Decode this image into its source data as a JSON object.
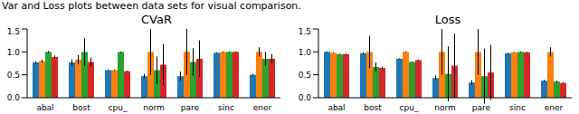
{
  "caption": "Var and Loss plots between data sets for visual comparison.",
  "chart_data": [
    {
      "type": "bar",
      "title": "CVaR",
      "categories": [
        "abal",
        "bost",
        "cpu_",
        "norm",
        "pare",
        "sinc",
        "ener"
      ],
      "series": [
        {
          "color": "#1f77b4",
          "values": [
            0.77,
            0.77,
            0.6,
            0.47,
            0.47,
            0.98,
            0.5
          ],
          "errors": [
            0.02,
            0.07,
            0.01,
            0.05,
            0.1,
            0.01,
            0.02
          ]
        },
        {
          "color": "#ff7f0e",
          "values": [
            0.8,
            0.83,
            0.6,
            1.0,
            1.0,
            1.0,
            1.0
          ],
          "errors": [
            0.03,
            0.1,
            0.01,
            0.5,
            0.5,
            0.01,
            0.1
          ]
        },
        {
          "color": "#2ca02c",
          "values": [
            1.0,
            1.0,
            1.0,
            0.6,
            0.78,
            1.0,
            0.85
          ],
          "errors": [
            0.02,
            0.3,
            0.01,
            0.3,
            0.3,
            0.01,
            0.15
          ]
        },
        {
          "color": "#d62728",
          "values": [
            0.89,
            0.78,
            0.58,
            0.72,
            0.85,
            1.0,
            0.85
          ],
          "errors": [
            0.03,
            0.1,
            0.01,
            0.45,
            0.4,
            0.01,
            0.1
          ]
        }
      ],
      "ylim": [
        0,
        1.5
      ],
      "yticks": [
        {
          "value": 0,
          "label": "0.0"
        },
        {
          "value": 0.5,
          "label": "0.5"
        },
        {
          "value": 1,
          "label": "1.0"
        },
        {
          "value": 1.5,
          "label": "1.5"
        }
      ],
      "grid": false
    },
    {
      "type": "bar",
      "title": "Loss",
      "categories": [
        "abal",
        "bost",
        "cpu_",
        "norm",
        "pare",
        "sinc",
        "ener"
      ],
      "series": [
        {
          "color": "#1f77b4",
          "values": [
            1.0,
            0.97,
            0.85,
            0.43,
            0.33,
            0.97,
            0.37
          ],
          "errors": [
            0.01,
            0.02,
            0.01,
            0.05,
            0.05,
            0.01,
            0.02
          ]
        },
        {
          "color": "#ff7f0e",
          "values": [
            0.98,
            1.0,
            1.0,
            1.0,
            1.0,
            0.99,
            1.0
          ],
          "errors": [
            0.01,
            0.35,
            0.01,
            0.5,
            0.5,
            0.01,
            0.1
          ]
        },
        {
          "color": "#2ca02c",
          "values": [
            0.95,
            0.67,
            0.78,
            0.52,
            0.47,
            1.0,
            0.35
          ],
          "errors": [
            0.01,
            0.1,
            0.01,
            0.6,
            0.6,
            0.01,
            0.02
          ]
        },
        {
          "color": "#d62728",
          "values": [
            0.95,
            0.65,
            0.82,
            0.7,
            0.55,
            0.99,
            0.32
          ],
          "errors": [
            0.01,
            0.03,
            0.01,
            0.7,
            0.6,
            0.01,
            0.02
          ]
        }
      ],
      "ylim": [
        0,
        1.5
      ],
      "yticks": [
        {
          "value": 0,
          "label": "0.0"
        },
        {
          "value": 0.5,
          "label": "0.5"
        },
        {
          "value": 1,
          "label": "1.0"
        },
        {
          "value": 1.5,
          "label": "1.5"
        }
      ],
      "grid": false
    }
  ]
}
